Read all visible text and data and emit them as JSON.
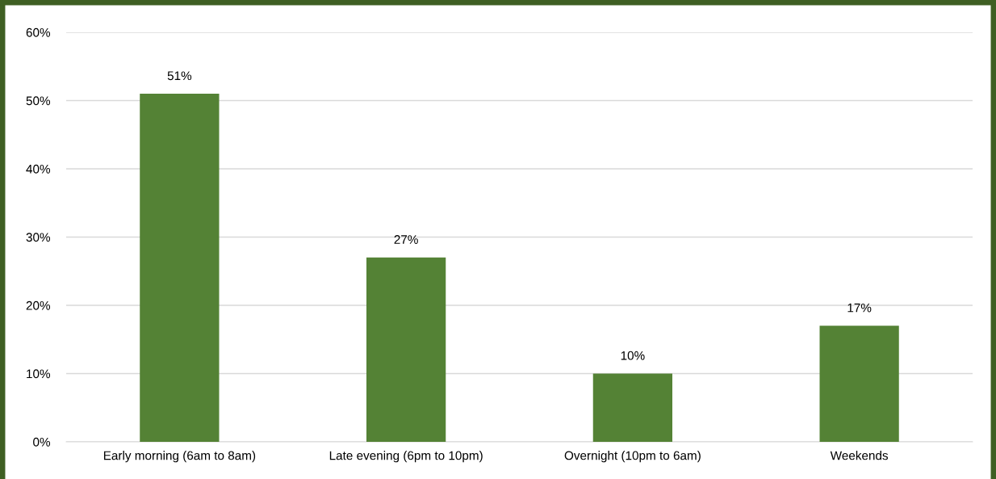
{
  "chart_data": {
    "type": "bar",
    "categories": [
      "Early morning (6am to 8am)",
      "Late evening (6pm to 10pm)",
      "Overnight (10pm to 6am)",
      "Weekends"
    ],
    "values": [
      51,
      27,
      10,
      17
    ],
    "value_labels": [
      "51%",
      "27%",
      "10%",
      "17%"
    ],
    "color": "#548235",
    "ylim": [
      0,
      60
    ],
    "yticks": [
      {
        "value": 0,
        "label": "0%"
      },
      {
        "value": 10,
        "label": "10%"
      },
      {
        "value": 20,
        "label": "20%"
      },
      {
        "value": 30,
        "label": "30%"
      },
      {
        "value": 40,
        "label": "40%"
      },
      {
        "value": 50,
        "label": "50%"
      },
      {
        "value": 60,
        "label": "60%"
      }
    ],
    "grid": "y"
  }
}
